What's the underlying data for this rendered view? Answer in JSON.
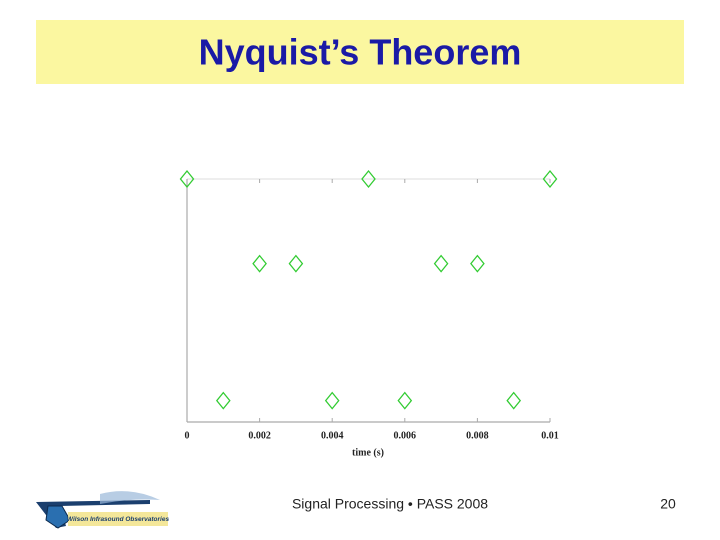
{
  "slide": {
    "footer": "Signal Processing • PASS 2008",
    "page_number": "20",
    "logo_text": "Wilson Infrasound Observatories"
  },
  "chart_data": {
    "type": "scatter",
    "title": "Nyquist’s Theorem",
    "x_label": "time (s)",
    "x": [
      0,
      0.001,
      0.002,
      0.003,
      0.004,
      0.005,
      0.006,
      0.007,
      0.008,
      0.009,
      0.01
    ],
    "values": [
      1,
      -0.809,
      0.309,
      0.309,
      -0.809,
      1,
      -0.809,
      0.309,
      0.309,
      -0.809,
      1
    ],
    "color": "#33cc33",
    "marker": "diamond",
    "xlim": [
      0,
      0.01
    ],
    "xticks": [
      0,
      0.002,
      0.004,
      0.006,
      0.008,
      0.01
    ],
    "ylim": [
      -1,
      1
    ],
    "grid": false
  }
}
